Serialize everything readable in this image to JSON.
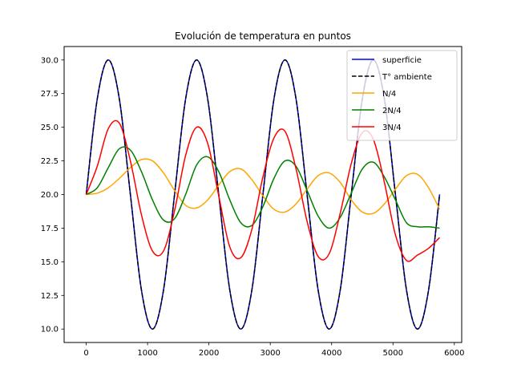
{
  "chart_data": {
    "type": "line",
    "title": "Evolución de temperatura en puntos",
    "xlabel": "",
    "ylabel": "",
    "xlim": [
      -360,
      6120
    ],
    "ylim": [
      9.0,
      31.0
    ],
    "x_ticks": [
      0,
      1000,
      2000,
      3000,
      4000,
      5000,
      6000
    ],
    "y_ticks": [
      10.0,
      12.5,
      15.0,
      17.5,
      20.0,
      22.5,
      25.0,
      27.5,
      30.0
    ],
    "grid": false,
    "legend_position": "top-right",
    "x": [
      0,
      180,
      360,
      540,
      720,
      900,
      1080,
      1260,
      1440,
      1620,
      1800,
      1980,
      2160,
      2340,
      2520,
      2700,
      2880,
      3060,
      3240,
      3420,
      3600,
      3780,
      3960,
      4140,
      4320,
      4500,
      4680,
      4860,
      5040,
      5220,
      5400,
      5580,
      5760
    ],
    "series": [
      {
        "name": "superficie",
        "color": "#0000ff",
        "dash": "solid",
        "values": [
          20.0,
          27.1,
          30.0,
          27.1,
          20.0,
          12.9,
          10.0,
          12.9,
          20.0,
          27.1,
          30.0,
          27.1,
          20.0,
          12.9,
          10.0,
          12.9,
          20.0,
          27.1,
          30.0,
          27.1,
          20.0,
          12.9,
          10.0,
          12.9,
          20.0,
          27.1,
          30.0,
          27.1,
          20.0,
          12.9,
          10.0,
          12.9,
          20.0
        ]
      },
      {
        "name": "T° ambiente",
        "color": "#000000",
        "dash": "dashed",
        "values": [
          20.0,
          27.1,
          30.0,
          27.1,
          20.0,
          12.9,
          10.0,
          12.9,
          20.0,
          27.1,
          30.0,
          27.1,
          20.0,
          12.9,
          10.0,
          12.9,
          20.0,
          27.1,
          30.0,
          27.1,
          20.0,
          12.9,
          10.0,
          12.9,
          20.0,
          27.1,
          30.0,
          27.1,
          20.0,
          12.9,
          10.0,
          12.9,
          20.0
        ]
      },
      {
        "name": "N/4",
        "color": "#ffa500",
        "dash": "solid",
        "values": [
          20.0,
          20.1,
          20.5,
          21.2,
          22.0,
          22.6,
          22.5,
          21.6,
          20.3,
          19.2,
          19.0,
          19.6,
          20.7,
          21.7,
          21.9,
          21.1,
          19.9,
          18.9,
          18.7,
          19.3,
          20.4,
          21.4,
          21.6,
          20.9,
          19.6,
          18.7,
          18.6,
          19.3,
          20.4,
          21.4,
          21.5,
          20.5,
          18.9
        ]
      },
      {
        "name": "2N/4",
        "color": "#008000",
        "dash": "solid",
        "values": [
          20.0,
          20.5,
          22.0,
          23.4,
          23.3,
          21.7,
          19.6,
          18.1,
          18.2,
          20.0,
          22.2,
          22.8,
          21.7,
          19.6,
          17.9,
          17.7,
          19.1,
          21.2,
          22.5,
          22.1,
          20.3,
          18.4,
          17.5,
          18.3,
          20.1,
          21.9,
          22.4,
          21.3,
          19.6,
          17.9,
          17.6,
          17.6,
          17.5
        ]
      },
      {
        "name": "3N/4",
        "color": "#ff0000",
        "dash": "solid",
        "values": [
          20.0,
          22.1,
          24.9,
          25.3,
          22.5,
          18.5,
          15.8,
          15.8,
          18.8,
          22.9,
          25.0,
          23.8,
          19.9,
          16.1,
          15.3,
          17.4,
          21.3,
          24.2,
          24.7,
          21.9,
          18.0,
          15.4,
          15.6,
          18.6,
          22.3,
          24.6,
          24.1,
          20.9,
          17.0,
          15.1,
          15.5,
          16.0,
          16.8
        ]
      }
    ]
  }
}
